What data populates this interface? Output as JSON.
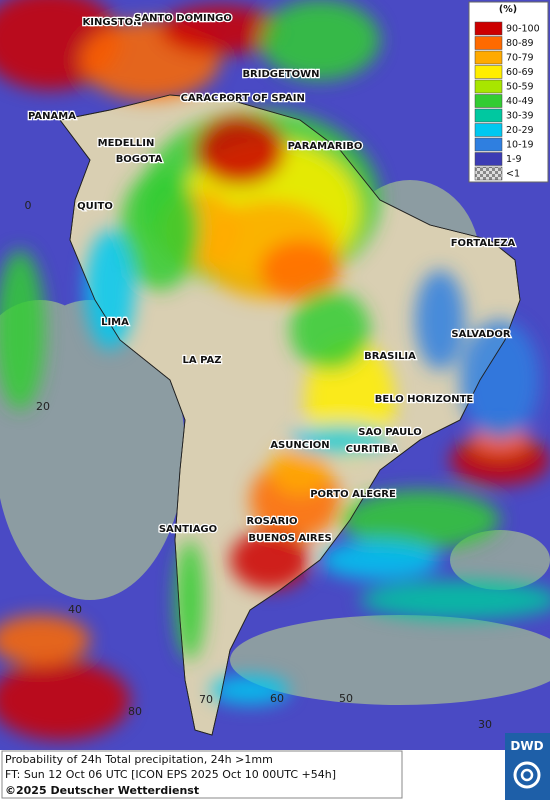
{
  "legend": {
    "title": "(%)",
    "items": [
      {
        "label": "90-100",
        "color": "#cc0000"
      },
      {
        "label": "80-89",
        "color": "#ff6a00"
      },
      {
        "label": "70-79",
        "color": "#ffaa00"
      },
      {
        "label": "60-69",
        "color": "#ffee00"
      },
      {
        "label": "50-59",
        "color": "#a8e600"
      },
      {
        "label": "40-49",
        "color": "#33cc33"
      },
      {
        "label": "30-39",
        "color": "#00c8a0"
      },
      {
        "label": "20-29",
        "color": "#00c8f0"
      },
      {
        "label": "10-19",
        "color": "#2f7fe0"
      },
      {
        "label": "1-9",
        "color": "#3c3cb4"
      },
      {
        "label": "<1",
        "color": "#b8b8b8"
      }
    ]
  },
  "cities": [
    "KINGSTON",
    "SANTO DOMINGO",
    "BRIDGETOWN",
    "CARACAS",
    "PORT OF SPAIN",
    "PANAMA",
    "MEDELLIN",
    "BOGOTA",
    "PARAMARIBO",
    "QUITO",
    "FORTALEZA",
    "LIMA",
    "SALVADOR",
    "LA PAZ",
    "BRASILIA",
    "BELO HORIZONTE",
    "SAO PAULO",
    "ASUNCION",
    "CURITIBA",
    "PORTO ALEGRE",
    "ROSARIO",
    "SANTIAGO",
    "BUENOS AIRES"
  ],
  "grid_labels": [
    "0",
    "20",
    "40",
    "70",
    "60",
    "50",
    "30",
    "80"
  ],
  "footer": {
    "line1": "Probability of 24h Total precipitation, 24h >1mm",
    "line2": "FT: Sun 12 Oct 06 UTC [ICON EPS 2025 Oct 10 00UTC +54h]",
    "copyright": "©2025 Deutscher Wetterdienst"
  },
  "logo": "DWD"
}
